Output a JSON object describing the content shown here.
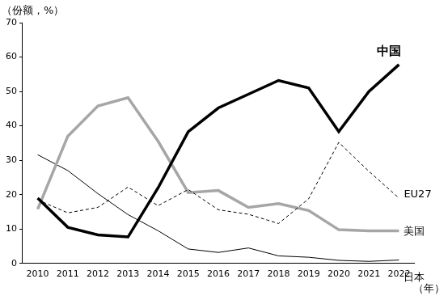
{
  "chart_data": {
    "type": "line",
    "y_label": "（份额，%）",
    "x_label": "（年）",
    "categories": [
      "2010",
      "2011",
      "2012",
      "2013",
      "2014",
      "2015",
      "2016",
      "2017",
      "2018",
      "2019",
      "2020",
      "2021",
      "2022"
    ],
    "series": [
      {
        "name": "中国",
        "color": "#000000",
        "line_style": "solid",
        "values": [
          19,
          10.5,
          8.3,
          7.7,
          22,
          38.3,
          45.2,
          49.2,
          53.2,
          51,
          38.3,
          50,
          57.8
        ]
      },
      {
        "name": "EU27",
        "color": "#000000",
        "line_style": "dashed",
        "values": [
          18.5,
          14.7,
          16.3,
          22.2,
          16.8,
          21.5,
          15.6,
          14.3,
          11.6,
          18.8,
          35.2,
          26.8,
          19
        ]
      },
      {
        "name": "美国",
        "color": "#a6a6a6",
        "line_style": "solid",
        "values": [
          15.8,
          37,
          45.8,
          48.2,
          35.5,
          20.6,
          21.2,
          16.3,
          17.4,
          15.4,
          9.8,
          9.5,
          9.5
        ]
      },
      {
        "name": "日本",
        "color": "#000000",
        "line_style": "solid",
        "values": [
          31.6,
          27,
          20.3,
          14.2,
          9.5,
          4.2,
          3.2,
          4.5,
          2.2,
          1.8,
          0.9,
          0.6,
          1
        ]
      }
    ],
    "ylim": [
      0,
      70
    ],
    "yticks": [
      0,
      10,
      20,
      30,
      40,
      50,
      60,
      70
    ],
    "grid": false
  }
}
